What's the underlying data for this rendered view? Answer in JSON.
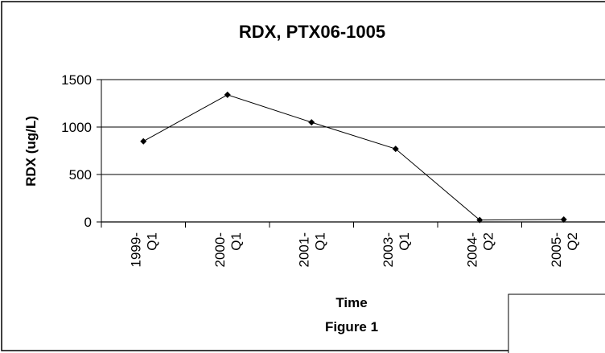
{
  "chart_data": {
    "type": "line",
    "title": "RDX, PTX06-1005",
    "xlabel": "Time",
    "ylabel": "RDX (ug/L)",
    "caption": "Figure 1",
    "categories": [
      {
        "line1": "1999-",
        "line2": "Q1"
      },
      {
        "line1": "2000-",
        "line2": "Q1"
      },
      {
        "line1": "2001-",
        "line2": "Q1"
      },
      {
        "line1": "2003-",
        "line2": "Q1"
      },
      {
        "line1": "2004-",
        "line2": "Q2"
      },
      {
        "line1": "2005-",
        "line2": "Q2"
      }
    ],
    "values": [
      850,
      1340,
      1050,
      770,
      20,
      25
    ],
    "ylim": [
      0,
      1500
    ],
    "yticks": [
      "0",
      "500",
      "1000",
      "1500"
    ],
    "grid": true,
    "legend": "none",
    "colors": {
      "line": "#000000",
      "marker": "#000000",
      "grid": "#000000",
      "border": "#000000"
    }
  }
}
